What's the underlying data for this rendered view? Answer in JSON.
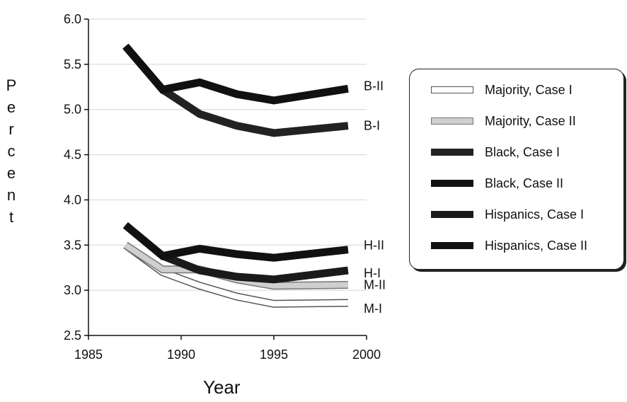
{
  "chart_data": {
    "type": "line",
    "title": "",
    "xlabel": "Year",
    "ylabel": "Percent",
    "xlim": [
      1985,
      2000
    ],
    "ylim": [
      2.5,
      6.0
    ],
    "x_ticks": [
      "1985",
      "1990",
      "1995",
      "2000"
    ],
    "y_ticks": [
      "2.5",
      "3.0",
      "3.5",
      "4.0",
      "4.5",
      "5.0",
      "5.5",
      "6.0"
    ],
    "grid": true,
    "legend_position": "right",
    "series": [
      {
        "name": "Majority, Case I",
        "end_label": "M-I",
        "fill": "#ffffff",
        "stroke": "#555555",
        "points": [
          [
            1987,
            3.5
          ],
          [
            1989,
            3.2
          ],
          [
            1991,
            3.05
          ],
          [
            1993,
            2.93
          ],
          [
            1995,
            2.85
          ],
          [
            1999,
            2.86
          ]
        ]
      },
      {
        "name": "Majority, Case II",
        "end_label": "M-II",
        "fill": "#cfcfcf",
        "stroke": "#777777",
        "points": [
          [
            1987,
            3.5
          ],
          [
            1989,
            3.23
          ],
          [
            1991,
            3.23
          ],
          [
            1993,
            3.12
          ],
          [
            1995,
            3.05
          ],
          [
            1999,
            3.06
          ]
        ]
      },
      {
        "name": "Black, Case I",
        "end_label": "B-I",
        "fill": "#222222",
        "stroke": "#222222",
        "points": [
          [
            1987,
            5.7
          ],
          [
            1989,
            5.22
          ],
          [
            1991,
            4.95
          ],
          [
            1993,
            4.82
          ],
          [
            1995,
            4.74
          ],
          [
            1999,
            4.82
          ]
        ]
      },
      {
        "name": "Black, Case II",
        "end_label": "B-II",
        "fill": "#111111",
        "stroke": "#111111",
        "points": [
          [
            1987,
            5.7
          ],
          [
            1989,
            5.22
          ],
          [
            1991,
            5.3
          ],
          [
            1993,
            5.17
          ],
          [
            1995,
            5.1
          ],
          [
            1999,
            5.23
          ]
        ]
      },
      {
        "name": "Hispanics, Case I",
        "end_label": "H-I",
        "fill": "#1a1a1a",
        "stroke": "#1a1a1a",
        "points": [
          [
            1987,
            3.72
          ],
          [
            1989,
            3.38
          ],
          [
            1991,
            3.22
          ],
          [
            1993,
            3.15
          ],
          [
            1995,
            3.12
          ],
          [
            1999,
            3.22
          ]
        ]
      },
      {
        "name": "Hispanics, Case II",
        "end_label": "H-II",
        "fill": "#111111",
        "stroke": "#111111",
        "points": [
          [
            1987,
            3.72
          ],
          [
            1989,
            3.38
          ],
          [
            1991,
            3.46
          ],
          [
            1993,
            3.4
          ],
          [
            1995,
            3.36
          ],
          [
            1999,
            3.45
          ]
        ]
      }
    ]
  }
}
